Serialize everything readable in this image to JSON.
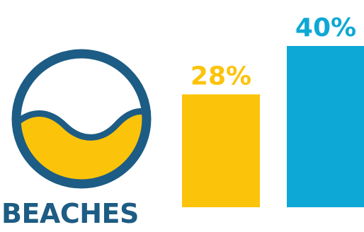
{
  "colors": {
    "navy": "#1d5c84",
    "yellow": "#fcc30b",
    "blue": "#0ea8d6",
    "background": "#ffffff"
  },
  "logo": {
    "icon": "beach-wave-icon",
    "label": "BEACHES"
  },
  "chart_data": {
    "type": "bar",
    "categories": [
      "",
      ""
    ],
    "values": [
      28,
      40
    ],
    "data_labels": [
      "28%",
      "40%"
    ],
    "colors": [
      "#fcc30b",
      "#0ea8d6"
    ],
    "title": "",
    "xlabel": "",
    "ylabel": "",
    "ylim": [
      0,
      40
    ],
    "grid": false,
    "legend": "none"
  }
}
